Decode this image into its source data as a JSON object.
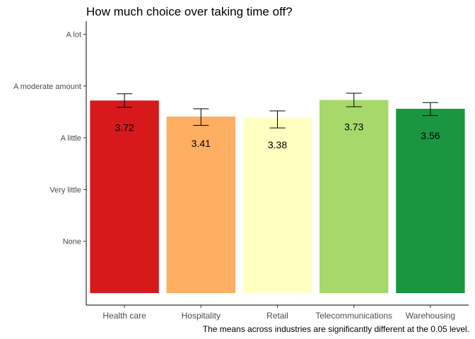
{
  "chart_data": {
    "type": "bar",
    "title": "How much choice over taking time off?",
    "caption": "The means across industries are significantly different at the 0.05 level.",
    "xlabel": "",
    "ylabel": "",
    "categories": [
      "Health care",
      "Hospitality",
      "Retail",
      "Telecommunications",
      "Warehousing"
    ],
    "values": [
      3.72,
      3.41,
      3.38,
      3.73,
      3.56
    ],
    "value_labels": [
      "3.72",
      "3.41",
      "3.38",
      "3.73",
      "3.56"
    ],
    "error_low": [
      3.59,
      3.24,
      3.19,
      3.6,
      3.43
    ],
    "error_high": [
      3.85,
      3.56,
      3.52,
      3.86,
      3.68
    ],
    "colors": [
      "#d7191c",
      "#fdae61",
      "#ffffbf",
      "#a6d96a",
      "#1a9641"
    ],
    "y_ticks": [
      {
        "value": 1,
        "label": "None"
      },
      {
        "value": 2,
        "label": "Very little"
      },
      {
        "value": 3,
        "label": "A little"
      },
      {
        "value": 4,
        "label": "A moderate amount"
      },
      {
        "value": 5,
        "label": "A lot"
      }
    ],
    "ylim": [
      0,
      5.5
    ],
    "bar_base": 0,
    "grid": false
  }
}
